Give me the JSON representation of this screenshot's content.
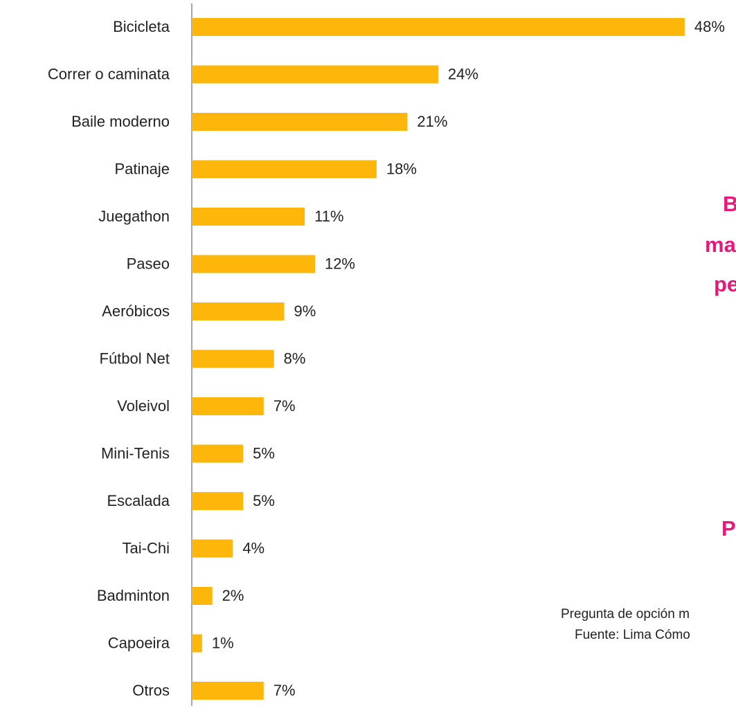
{
  "chart_data": {
    "type": "hbar",
    "categories": [
      "Bicicleta",
      "Correr o caminata",
      "Baile moderno",
      "Patinaje",
      "Juegathon",
      "Paseo",
      "Aeróbicos",
      "Fútbol Net",
      "Voleivol",
      "Mini-Tenis",
      "Escalada",
      "Tai-Chi",
      "Badminton",
      "Capoeira",
      "Otros"
    ],
    "values": [
      48,
      24,
      21,
      18,
      11,
      12,
      9,
      8,
      7,
      5,
      5,
      4,
      2,
      1,
      7
    ],
    "value_labels": [
      "48%",
      "24%",
      "21%",
      "18%",
      "11%",
      "12%",
      "9%",
      "8%",
      "7%",
      "5%",
      "5%",
      "4%",
      "2%",
      "1%",
      "7%"
    ],
    "color": "#ffb60a",
    "xlim": [
      0,
      53
    ],
    "annotations": [
      "B",
      "ma",
      "pe",
      "P"
    ],
    "notes": [
      "Pregunta de opción m",
      "Fuente: Lima Cómo"
    ]
  }
}
